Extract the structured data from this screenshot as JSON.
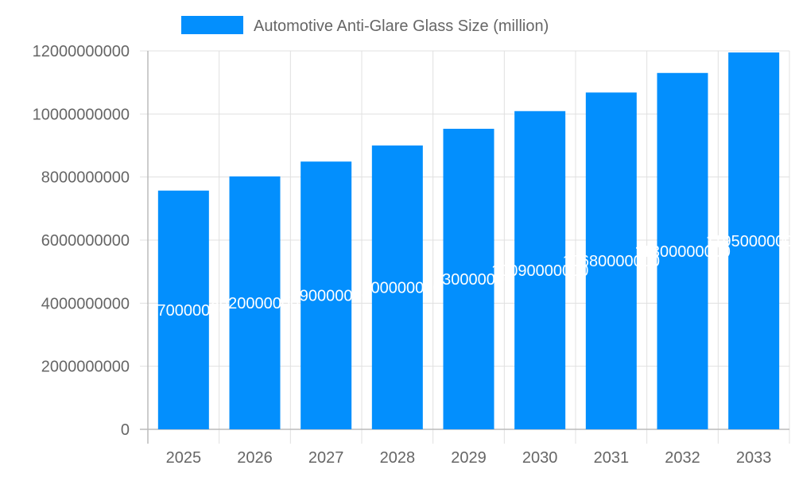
{
  "chart_data": {
    "type": "bar",
    "title": "",
    "xlabel": "",
    "ylabel": "",
    "categories": [
      "2025",
      "2026",
      "2027",
      "2028",
      "2029",
      "2030",
      "2031",
      "2032",
      "2033"
    ],
    "series": [
      {
        "name": "Automotive Anti-Glare Glass Size (million)",
        "values": [
          7570000000,
          8020000000,
          8490000000,
          9000000000,
          9530000000,
          10090000000,
          10680000000,
          11300000000,
          11950000000
        ],
        "color": "#038ffd"
      }
    ],
    "ylim": [
      0,
      12000000000
    ],
    "yticks": [
      "0",
      "2000000000",
      "4000000000",
      "6000000000",
      "8000000000",
      "10000000000",
      "12000000000"
    ],
    "grid": true,
    "legend": "top",
    "data_labels": true
  }
}
